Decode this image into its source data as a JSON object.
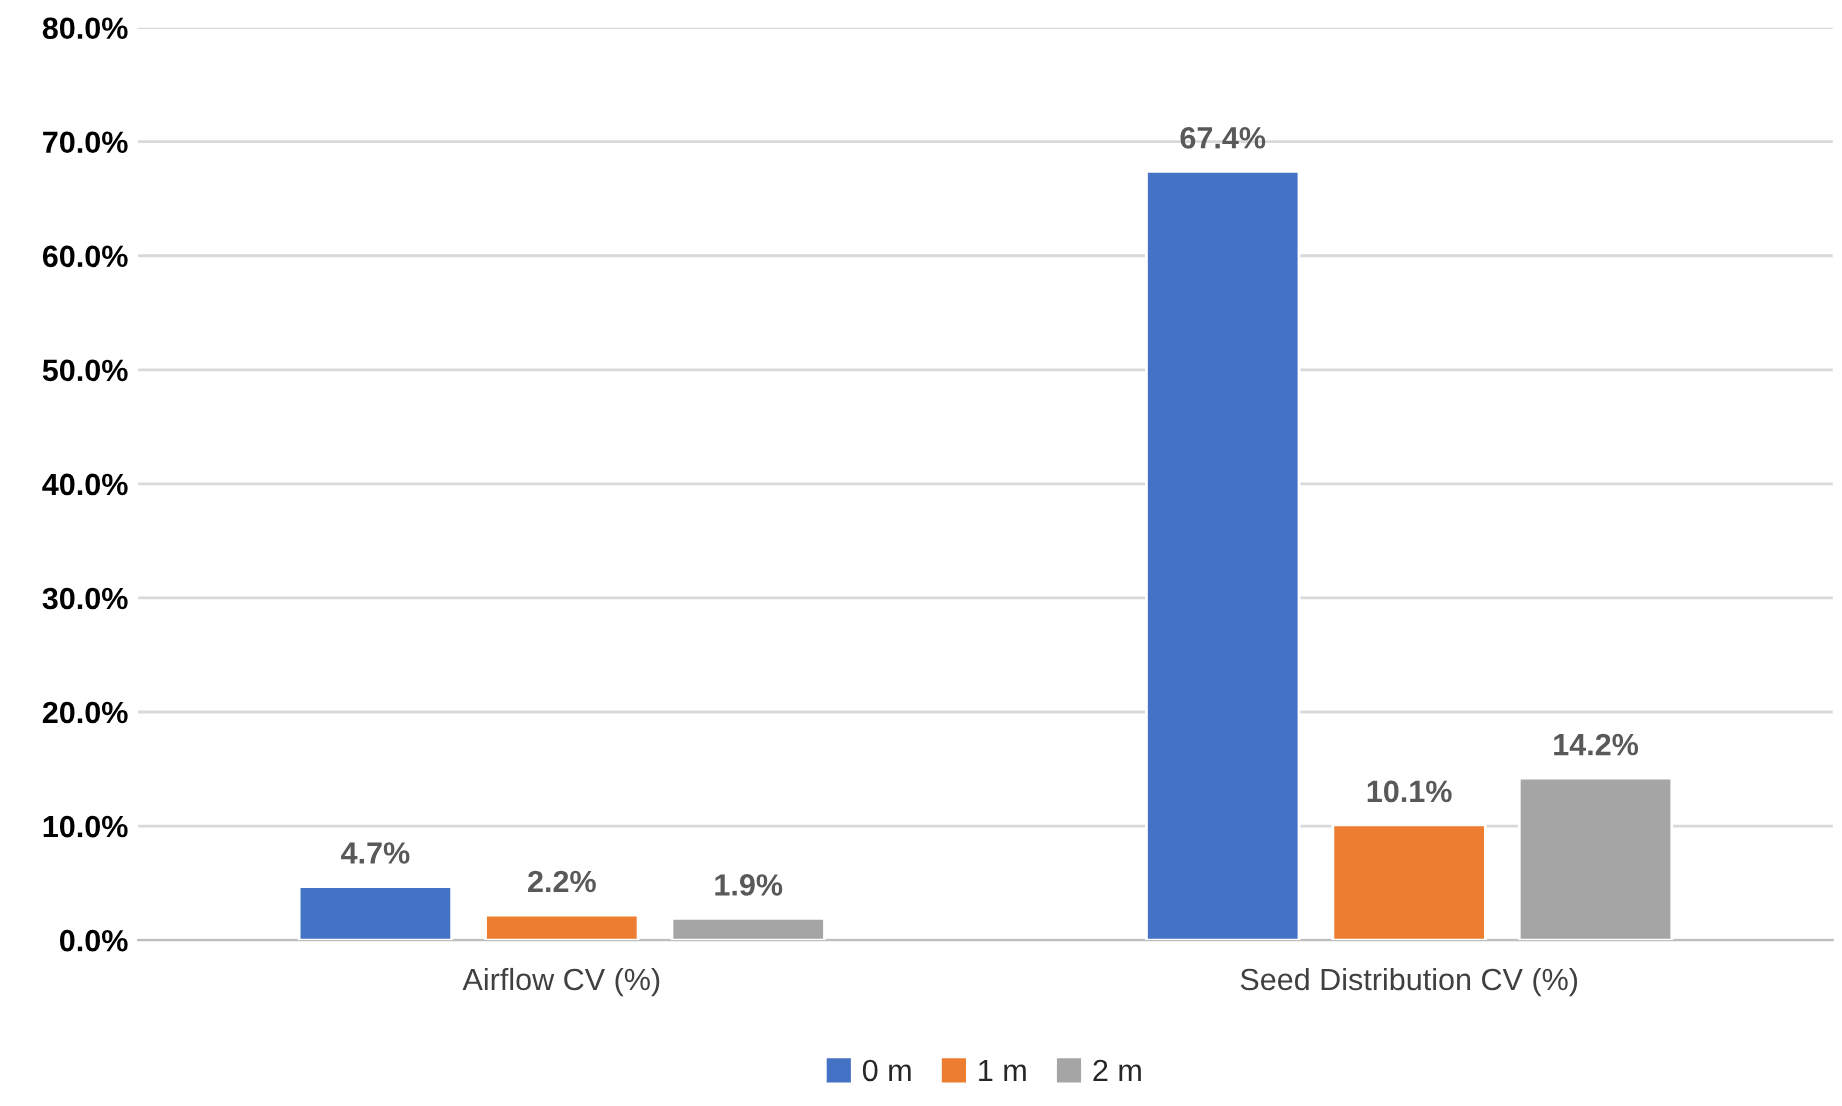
{
  "chart_data": {
    "type": "bar",
    "categories": [
      "Airflow CV (%)",
      "Seed Distribution CV (%)"
    ],
    "series": [
      {
        "name": "0 m",
        "color": "#4472c4",
        "values": [
          4.7,
          67.4
        ],
        "value_labels": [
          "4.7%",
          "67.4%"
        ]
      },
      {
        "name": "1 m",
        "color": "#ed7d31",
        "values": [
          2.2,
          10.1
        ],
        "value_labels": [
          "2.2%",
          "10.1%"
        ]
      },
      {
        "name": "2 m",
        "color": "#a5a5a5",
        "values": [
          1.9,
          14.2
        ],
        "value_labels": [
          "1.9%",
          "14.2%"
        ]
      }
    ],
    "ylim": [
      0,
      80
    ],
    "yticks": [
      {
        "value": 0,
        "label": "0.0%"
      },
      {
        "value": 10,
        "label": "10.0%"
      },
      {
        "value": 20,
        "label": "20.0%"
      },
      {
        "value": 30,
        "label": "30.0%"
      },
      {
        "value": 40,
        "label": "40.0%"
      },
      {
        "value": 50,
        "label": "50.0%"
      },
      {
        "value": 60,
        "label": "60.0%"
      },
      {
        "value": 70,
        "label": "70.0%"
      },
      {
        "value": 80,
        "label": "80.0%"
      }
    ],
    "grid": "y",
    "legend": "bottom"
  }
}
